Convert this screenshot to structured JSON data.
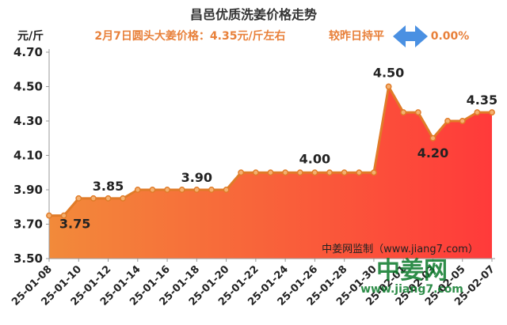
{
  "chart_data": {
    "type": "area",
    "title": "昌邑优质洗姜价格走势",
    "subtitle_price": "2月7日圆头大姜价格：4.35元/斤左右",
    "subtitle_compare": "较昨日持平",
    "subtitle_change": "0.00%",
    "ylabel": "元/斤",
    "ylim": [
      3.5,
      4.7
    ],
    "yticks": [
      "3.50",
      "3.70",
      "3.90",
      "4.10",
      "4.30",
      "4.50",
      "4.70"
    ],
    "xticks": [
      "25-01-08",
      "25-01-10",
      "25-01-12",
      "25-01-14",
      "25-01-16",
      "25-01-18",
      "25-01-20",
      "25-01-22",
      "25-01-24",
      "25-01-26",
      "25-01-28",
      "25-01-30",
      "25-02-01",
      "25-02-03",
      "25-02-05",
      "25-02-07"
    ],
    "x": [
      "25-01-08",
      "25-01-09",
      "25-01-10",
      "25-01-11",
      "25-01-12",
      "25-01-13",
      "25-01-14",
      "25-01-15",
      "25-01-16",
      "25-01-17",
      "25-01-18",
      "25-01-19",
      "25-01-20",
      "25-01-21",
      "25-01-22",
      "25-01-23",
      "25-01-24",
      "25-01-25",
      "25-01-26",
      "25-01-27",
      "25-01-28",
      "25-01-29",
      "25-01-30",
      "25-01-31",
      "25-02-01",
      "25-02-02",
      "25-02-03",
      "25-02-04",
      "25-02-05",
      "25-02-06",
      "25-02-07"
    ],
    "values": [
      3.75,
      3.75,
      3.85,
      3.85,
      3.85,
      3.85,
      3.9,
      3.9,
      3.9,
      3.9,
      3.9,
      3.9,
      3.9,
      4.0,
      4.0,
      4.0,
      4.0,
      4.0,
      4.0,
      4.0,
      4.0,
      4.0,
      4.0,
      4.5,
      4.35,
      4.35,
      4.2,
      4.3,
      4.3,
      4.35,
      4.35
    ],
    "data_labels": [
      {
        "index": 1,
        "text": "3.75"
      },
      {
        "index": 4,
        "text": "3.85"
      },
      {
        "index": 10,
        "text": "3.90"
      },
      {
        "index": 18,
        "text": "4.00"
      },
      {
        "index": 23,
        "text": "4.50"
      },
      {
        "index": 26,
        "text": "4.20"
      },
      {
        "index": 29,
        "text": "4.35"
      }
    ],
    "annotation_source": "中姜网监制（www.jiang7.com）",
    "grid": false,
    "colors": {
      "fill_top": "#ff3a3a",
      "fill_bottom": "#f28a3a",
      "line": "#e07b28",
      "marker_fill": "#f4b070",
      "arrow": "#4a90e2"
    }
  },
  "watermark": {
    "logo_text": "中姜网",
    "logo_url": "www.jiang7.com"
  }
}
